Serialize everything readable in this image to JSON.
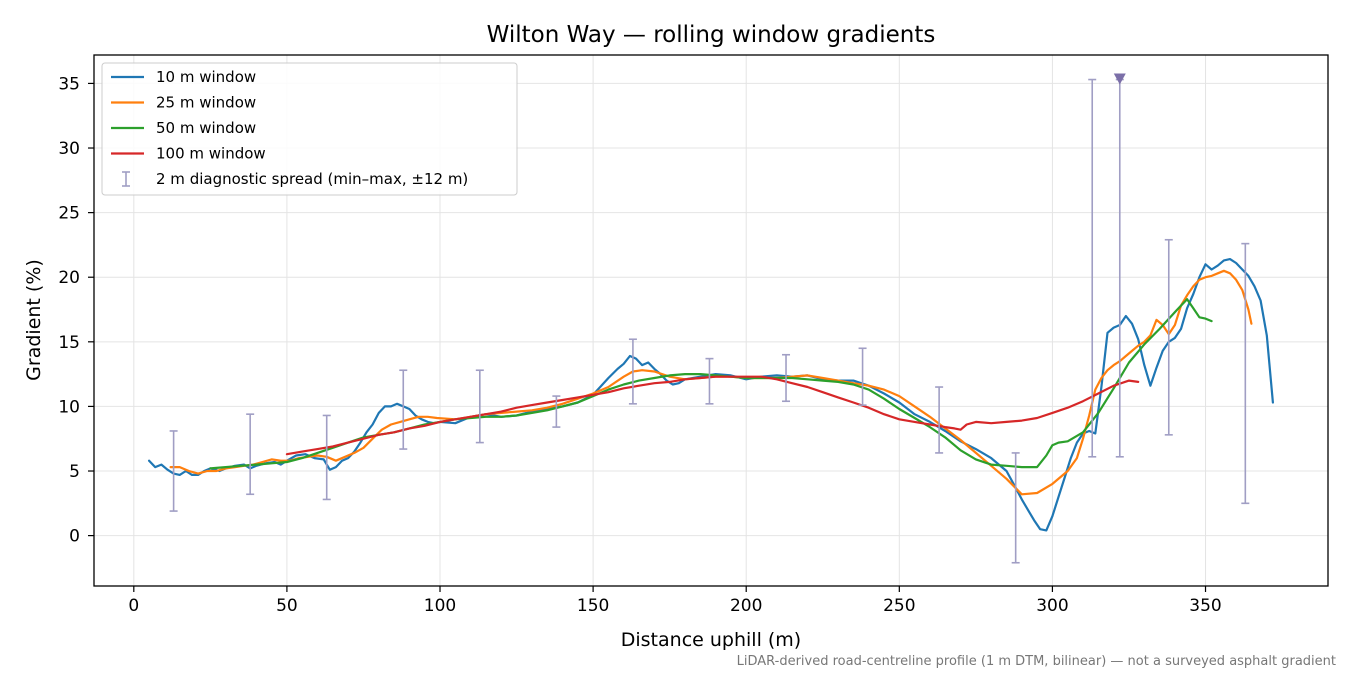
{
  "chart_data": {
    "type": "line",
    "title": "Wilton Way — rolling window gradients",
    "xlabel": "Distance uphill (m)",
    "ylabel": "Gradient (%)",
    "xlim": [
      -13,
      390
    ],
    "ylim": [
      -3.9,
      37.2
    ],
    "xticks": [
      0,
      50,
      100,
      150,
      200,
      250,
      300,
      350
    ],
    "yticks": [
      0,
      5,
      10,
      15,
      20,
      25,
      30,
      35
    ],
    "grid": true,
    "legend_position": "top-left",
    "footnote": "LiDAR-derived road-centreline profile (1 m DTM, bilinear) — not a surveyed asphalt gradient",
    "series": [
      {
        "name": "10 m window",
        "color": "#1f77b4",
        "x": [
          5,
          7,
          9,
          11,
          13,
          15,
          17,
          19,
          21,
          23,
          25,
          28,
          30,
          33,
          36,
          38,
          40,
          43,
          46,
          48,
          50,
          53,
          56,
          59,
          62,
          64,
          66,
          68,
          70,
          72,
          74,
          76,
          78,
          80,
          82,
          84,
          86,
          88,
          90,
          92,
          94,
          96,
          98,
          100,
          105,
          110,
          115,
          120,
          125,
          130,
          135,
          140,
          145,
          150,
          155,
          158,
          160,
          162,
          164,
          166,
          168,
          170,
          172,
          174,
          176,
          178,
          180,
          185,
          190,
          195,
          200,
          205,
          210,
          215,
          220,
          225,
          230,
          235,
          240,
          245,
          250,
          255,
          260,
          265,
          270,
          275,
          280,
          285,
          288,
          290,
          292,
          294,
          296,
          298,
          300,
          302,
          304,
          306,
          308,
          310,
          312,
          314,
          316,
          318,
          320,
          322,
          324,
          326,
          328,
          330,
          332,
          334,
          336,
          338,
          340,
          342,
          344,
          346,
          348,
          350,
          352,
          354,
          356,
          358,
          360,
          362,
          364,
          366,
          368,
          370,
          372
        ],
        "y": [
          5.8,
          5.3,
          5.5,
          5.1,
          4.8,
          4.7,
          5.0,
          4.7,
          4.7,
          5.0,
          5.2,
          5.0,
          5.2,
          5.4,
          5.5,
          5.2,
          5.4,
          5.6,
          5.7,
          5.5,
          5.8,
          6.2,
          6.3,
          6.0,
          5.9,
          5.1,
          5.3,
          5.8,
          6.0,
          6.5,
          7.2,
          8.0,
          8.6,
          9.5,
          10.0,
          10.0,
          10.2,
          10.0,
          9.8,
          9.3,
          9.0,
          8.8,
          8.7,
          8.8,
          8.7,
          9.2,
          9.4,
          9.2,
          9.3,
          9.6,
          9.8,
          10.0,
          10.3,
          10.9,
          12.2,
          12.9,
          13.3,
          13.9,
          13.7,
          13.2,
          13.4,
          12.9,
          12.5,
          12.0,
          11.7,
          11.8,
          12.1,
          12.3,
          12.5,
          12.4,
          12.1,
          12.3,
          12.4,
          12.3,
          12.4,
          12.1,
          12.0,
          12.0,
          11.6,
          11.0,
          10.3,
          9.4,
          8.8,
          8.1,
          7.3,
          6.7,
          6.0,
          5.0,
          3.7,
          2.8,
          2.0,
          1.2,
          0.5,
          0.4,
          1.5,
          3.0,
          4.5,
          6.0,
          7.2,
          7.9,
          8.1,
          7.9,
          11.5,
          15.7,
          16.1,
          16.3,
          17.0,
          16.4,
          15.2,
          13.2,
          11.6,
          13.0,
          14.3,
          15.0,
          15.3,
          16.0,
          17.6,
          18.7,
          20.0,
          21.0,
          20.6,
          20.9,
          21.3,
          21.4,
          21.1,
          20.6,
          20.1,
          19.3,
          18.2,
          15.5,
          10.3
        ]
      },
      {
        "name": "25 m window",
        "color": "#ff7f0e",
        "x": [
          12,
          15,
          18,
          21,
          24,
          27,
          30,
          33,
          36,
          39,
          42,
          45,
          48,
          51,
          54,
          57,
          60,
          63,
          66,
          69,
          72,
          75,
          78,
          81,
          84,
          87,
          90,
          93,
          96,
          99,
          105,
          110,
          115,
          120,
          125,
          130,
          135,
          140,
          145,
          150,
          155,
          160,
          163,
          166,
          170,
          175,
          180,
          185,
          190,
          195,
          200,
          205,
          210,
          215,
          220,
          225,
          230,
          235,
          240,
          245,
          250,
          255,
          260,
          265,
          270,
          275,
          280,
          285,
          290,
          295,
          300,
          305,
          308,
          310,
          312,
          314,
          316,
          318,
          320,
          322,
          324,
          326,
          328,
          330,
          332,
          334,
          336,
          338,
          340,
          342,
          344,
          346,
          348,
          350,
          352,
          354,
          356,
          358,
          360,
          362,
          364,
          365
        ],
        "y": [
          5.3,
          5.3,
          5.0,
          4.8,
          5.0,
          5.0,
          5.2,
          5.3,
          5.4,
          5.5,
          5.7,
          5.9,
          5.8,
          5.8,
          6.0,
          6.1,
          6.2,
          6.1,
          5.8,
          6.1,
          6.4,
          6.8,
          7.5,
          8.2,
          8.6,
          8.8,
          9.0,
          9.2,
          9.2,
          9.1,
          9.0,
          9.2,
          9.4,
          9.5,
          9.6,
          9.7,
          9.9,
          10.2,
          10.6,
          11.0,
          11.5,
          12.3,
          12.7,
          12.8,
          12.7,
          12.3,
          12.1,
          12.2,
          12.3,
          12.3,
          12.2,
          12.2,
          12.2,
          12.3,
          12.4,
          12.2,
          12.0,
          11.8,
          11.6,
          11.3,
          10.8,
          10.0,
          9.2,
          8.3,
          7.4,
          6.4,
          5.4,
          4.4,
          3.2,
          3.3,
          4.0,
          5.0,
          6.0,
          7.5,
          9.3,
          11.3,
          12.2,
          12.8,
          13.2,
          13.5,
          13.9,
          14.3,
          14.7,
          15.0,
          15.5,
          16.7,
          16.3,
          15.6,
          16.3,
          17.8,
          18.6,
          19.3,
          19.8,
          20.0,
          20.1,
          20.3,
          20.5,
          20.3,
          19.8,
          19.0,
          17.5,
          16.4
        ]
      },
      {
        "name": "50 m window",
        "color": "#2ca02c",
        "x": [
          25,
          30,
          35,
          40,
          45,
          50,
          55,
          60,
          65,
          70,
          75,
          80,
          85,
          90,
          95,
          100,
          105,
          110,
          115,
          120,
          125,
          130,
          135,
          140,
          145,
          150,
          155,
          160,
          165,
          170,
          175,
          180,
          185,
          190,
          195,
          200,
          205,
          210,
          215,
          220,
          225,
          230,
          235,
          240,
          245,
          250,
          255,
          260,
          265,
          270,
          275,
          280,
          285,
          290,
          295,
          298,
          300,
          302,
          305,
          310,
          315,
          320,
          325,
          330,
          335,
          340,
          342,
          344,
          346,
          348,
          350,
          352
        ],
        "y": [
          5.2,
          5.3,
          5.4,
          5.5,
          5.6,
          5.7,
          6.0,
          6.4,
          6.8,
          7.2,
          7.6,
          7.8,
          8.0,
          8.3,
          8.6,
          8.8,
          9.0,
          9.1,
          9.2,
          9.2,
          9.3,
          9.5,
          9.7,
          10.0,
          10.3,
          10.8,
          11.3,
          11.7,
          12.0,
          12.2,
          12.4,
          12.5,
          12.5,
          12.4,
          12.3,
          12.2,
          12.2,
          12.2,
          12.2,
          12.1,
          12.0,
          11.9,
          11.7,
          11.3,
          10.6,
          9.8,
          9.1,
          8.4,
          7.6,
          6.6,
          5.9,
          5.5,
          5.4,
          5.3,
          5.3,
          6.2,
          7.0,
          7.2,
          7.3,
          8.0,
          9.5,
          11.4,
          13.4,
          14.8,
          16.0,
          17.3,
          17.8,
          18.3,
          17.6,
          16.9,
          16.8,
          16.6
        ]
      },
      {
        "name": "100 m window",
        "color": "#d62728",
        "x": [
          50,
          55,
          60,
          65,
          70,
          75,
          80,
          85,
          90,
          95,
          100,
          105,
          110,
          115,
          120,
          125,
          130,
          135,
          140,
          145,
          150,
          155,
          160,
          165,
          170,
          175,
          180,
          185,
          190,
          195,
          200,
          205,
          210,
          215,
          220,
          225,
          230,
          235,
          240,
          245,
          250,
          255,
          260,
          265,
          268,
          270,
          272,
          275,
          280,
          285,
          290,
          295,
          300,
          305,
          310,
          315,
          320,
          325,
          328
        ],
        "y": [
          6.3,
          6.5,
          6.7,
          6.9,
          7.2,
          7.5,
          7.8,
          8.0,
          8.3,
          8.5,
          8.8,
          9.0,
          9.2,
          9.4,
          9.6,
          9.9,
          10.1,
          10.3,
          10.5,
          10.7,
          10.9,
          11.1,
          11.4,
          11.6,
          11.8,
          11.9,
          12.1,
          12.2,
          12.3,
          12.3,
          12.3,
          12.3,
          12.1,
          11.8,
          11.5,
          11.1,
          10.7,
          10.3,
          9.9,
          9.4,
          9.0,
          8.8,
          8.6,
          8.4,
          8.3,
          8.2,
          8.6,
          8.8,
          8.7,
          8.8,
          8.9,
          9.1,
          9.5,
          9.9,
          10.4,
          11.0,
          11.6,
          12.0,
          11.9
        ]
      }
    ],
    "errorbars": {
      "name": "2 m diagnostic spread (min–max, ±12 m)",
      "color": "#a09ec4",
      "x": [
        13,
        38,
        63,
        88,
        113,
        138,
        163,
        188,
        213,
        238,
        263,
        288,
        313,
        322,
        338,
        363
      ],
      "low": [
        1.9,
        3.2,
        2.8,
        6.7,
        7.2,
        8.4,
        10.2,
        10.2,
        10.4,
        10.1,
        6.4,
        -2.1,
        6.1,
        6.1,
        7.8,
        2.5
      ],
      "high": [
        8.1,
        9.4,
        9.3,
        12.8,
        12.8,
        10.8,
        15.2,
        13.7,
        14.0,
        14.5,
        11.5,
        6.4,
        35.3,
        35.3,
        22.9,
        22.6
      ]
    },
    "marker": {
      "x": 322,
      "y": 35.3,
      "shape": "triangle-down",
      "color": "#7b6fa8"
    }
  }
}
